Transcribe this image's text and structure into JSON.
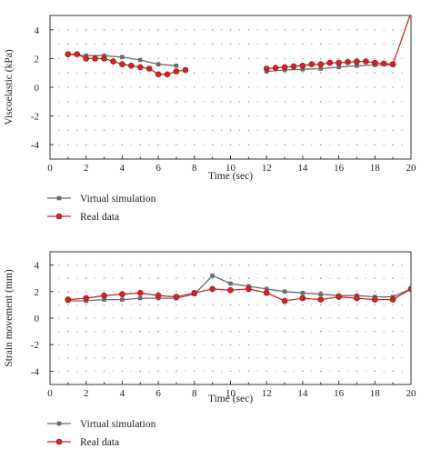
{
  "colors": {
    "virtual": "#6b6b6b",
    "real": "#d32424",
    "axis": "#333333",
    "grid_dots": "#9a9a9a"
  },
  "chart_data": [
    {
      "type": "line",
      "xlabel": "Time (sec)",
      "ylabel": "Viscoelastic (kPa)",
      "xlim": [
        0,
        20
      ],
      "ylim": [
        -5,
        5
      ],
      "xticks": [
        0,
        2,
        4,
        6,
        8,
        10,
        12,
        14,
        16,
        18,
        20
      ],
      "yticks": [
        -4,
        -2,
        0,
        2,
        4
      ],
      "grid": "dotted",
      "legend": "below",
      "series": [
        {
          "name": "Virtual simulation",
          "marker": "square",
          "segments": [
            {
              "x": [
                1,
                2,
                3,
                4,
                5,
                6,
                7
              ],
              "y": [
                2.3,
                2.2,
                2.2,
                2.1,
                1.9,
                1.6,
                1.5
              ]
            },
            {
              "x": [
                12,
                13,
                14,
                15,
                16,
                17,
                18,
                19
              ],
              "y": [
                1.1,
                1.2,
                1.25,
                1.3,
                1.4,
                1.5,
                1.55,
                1.55
              ]
            }
          ]
        },
        {
          "name": "Real data",
          "marker": "circle",
          "segments": [
            {
              "x": [
                1,
                1.5,
                2,
                2.5,
                3,
                3.5,
                4,
                4.5,
                5,
                5.5,
                6,
                6.5,
                7,
                7.5
              ],
              "y": [
                2.3,
                2.3,
                2.0,
                2.0,
                2.0,
                1.8,
                1.6,
                1.5,
                1.4,
                1.3,
                0.9,
                0.9,
                1.1,
                1.2
              ]
            },
            {
              "x": [
                12,
                12.5,
                13,
                13.5,
                14,
                14.5,
                15,
                15.5,
                16,
                16.5,
                17,
                17.5,
                18,
                18.5,
                19,
                20
              ],
              "y": [
                1.3,
                1.35,
                1.4,
                1.45,
                1.5,
                1.6,
                1.6,
                1.7,
                1.7,
                1.75,
                1.8,
                1.8,
                1.7,
                1.65,
                1.6,
                5.2
              ]
            }
          ]
        }
      ]
    },
    {
      "type": "line",
      "xlabel": "Time (sec)",
      "ylabel": "Strain movement (mm)",
      "xlim": [
        0,
        20
      ],
      "ylim": [
        -5,
        5
      ],
      "xticks": [
        0,
        2,
        4,
        6,
        8,
        10,
        12,
        14,
        16,
        18,
        20
      ],
      "yticks": [
        -4,
        -2,
        0,
        2,
        4
      ],
      "grid": "dotted",
      "legend": "below",
      "series": [
        {
          "name": "Virtual simulation",
          "marker": "square",
          "segments": [
            {
              "x": [
                1,
                2,
                3,
                4,
                5,
                6,
                7,
                8,
                9,
                10,
                11,
                12,
                13,
                14,
                15,
                16,
                17,
                18,
                19,
                20
              ],
              "y": [
                1.3,
                1.3,
                1.4,
                1.4,
                1.5,
                1.5,
                1.5,
                1.8,
                3.2,
                2.6,
                2.4,
                2.2,
                2.0,
                1.9,
                1.8,
                1.7,
                1.7,
                1.6,
                1.6,
                2.2
              ]
            }
          ]
        },
        {
          "name": "Real data",
          "marker": "circle",
          "segments": [
            {
              "x": [
                1,
                2,
                3,
                4,
                5,
                6,
                7,
                8,
                9,
                10,
                11,
                12,
                13,
                14,
                15,
                16,
                17,
                18,
                19,
                20
              ],
              "y": [
                1.4,
                1.5,
                1.7,
                1.8,
                1.9,
                1.7,
                1.6,
                1.9,
                2.2,
                2.1,
                2.2,
                1.9,
                1.3,
                1.5,
                1.4,
                1.6,
                1.5,
                1.4,
                1.4,
                2.2
              ]
            }
          ]
        }
      ]
    }
  ]
}
